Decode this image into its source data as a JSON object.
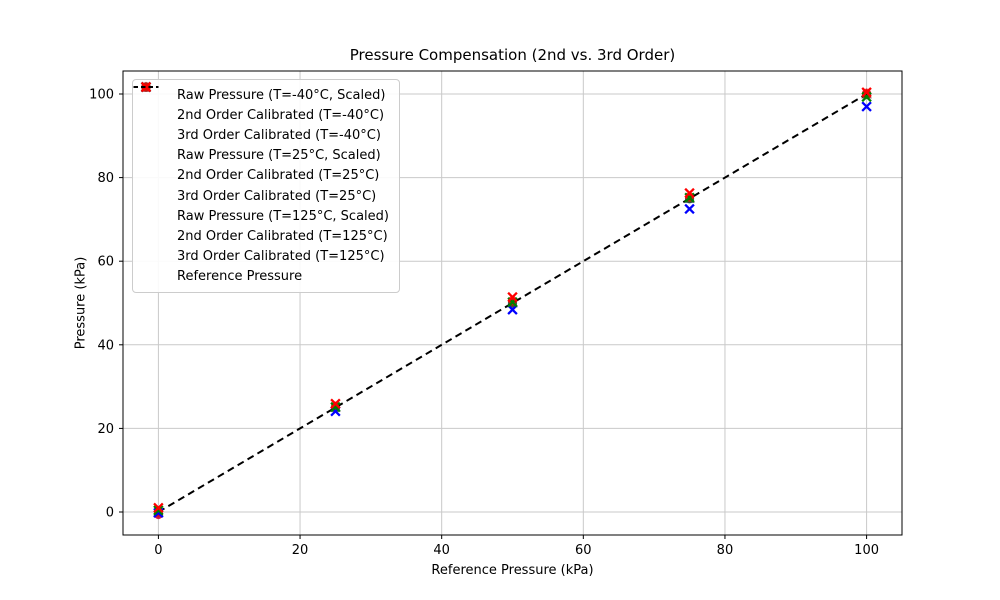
{
  "chart_data": {
    "type": "scatter",
    "title": "Pressure Compensation (2nd vs. 3rd Order)",
    "xlabel": "Reference Pressure (kPa)",
    "ylabel": "Pressure (kPa)",
    "xlim": [
      -5,
      105
    ],
    "ylim": [
      -5.5,
      105.5
    ],
    "xticks": [
      0,
      20,
      40,
      60,
      80,
      100
    ],
    "yticks": [
      0,
      20,
      40,
      60,
      80,
      100
    ],
    "grid": true,
    "grid_color": "#c9c9c9",
    "axes_color": "#000000",
    "legend_position": "upper left",
    "series": [
      {
        "name": "Raw Pressure (T=-40°C, Scaled)",
        "marker": "x",
        "color": "#0000ff",
        "opacity": 1,
        "x": [
          0,
          25,
          50,
          75,
          100
        ],
        "y": [
          -0.2,
          24.1,
          48.4,
          72.5,
          97.0
        ]
      },
      {
        "name": "2nd Order Calibrated (T=-40°C)",
        "marker": "circle",
        "color": "#0000ff",
        "opacity": 0.68,
        "x": [
          0,
          25,
          50,
          75,
          100
        ],
        "y": [
          -0.5,
          24.9,
          49.9,
          74.9,
          100.0
        ]
      },
      {
        "name": "3rd Order Calibrated (T=-40°C)",
        "marker": "triangle",
        "color": "#0000ff",
        "opacity": 0.34,
        "x": [
          0,
          25,
          50,
          75,
          100
        ],
        "y": [
          0.0,
          25.0,
          50.0,
          75.0,
          100.0
        ]
      },
      {
        "name": "Raw Pressure (T=25°C, Scaled)",
        "marker": "x",
        "color": "#008000",
        "opacity": 1,
        "x": [
          0,
          25,
          50,
          75,
          100
        ],
        "y": [
          0.4,
          25.1,
          50.2,
          75.2,
          99.3
        ]
      },
      {
        "name": "2nd Order Calibrated (T=25°C)",
        "marker": "circle",
        "color": "#008000",
        "opacity": 0.68,
        "x": [
          0,
          25,
          50,
          75,
          100
        ],
        "y": [
          0.1,
          25.0,
          50.0,
          75.0,
          99.9
        ]
      },
      {
        "name": "3rd Order Calibrated (T=25°C)",
        "marker": "triangle",
        "color": "#008000",
        "opacity": 0.34,
        "x": [
          0,
          25,
          50,
          75,
          100
        ],
        "y": [
          0.0,
          25.0,
          50.0,
          75.0,
          100.0
        ]
      },
      {
        "name": "Raw Pressure (T=125°C, Scaled)",
        "marker": "x",
        "color": "#ff0000",
        "opacity": 1,
        "x": [
          0,
          25,
          50,
          75,
          100
        ],
        "y": [
          1.0,
          25.9,
          51.4,
          76.3,
          100.4
        ]
      },
      {
        "name": "2nd Order Calibrated (T=125°C)",
        "marker": "circle",
        "color": "#ff0000",
        "opacity": 0.68,
        "x": [
          0,
          25,
          50,
          75,
          100
        ],
        "y": [
          -0.6,
          25.3,
          50.6,
          75.4,
          100.2
        ]
      },
      {
        "name": "3rd Order Calibrated (T=125°C)",
        "marker": "triangle",
        "color": "#ff0000",
        "opacity": 0.34,
        "x": [
          0,
          25,
          50,
          75,
          100
        ],
        "y": [
          -0.2,
          25.1,
          50.1,
          75.1,
          100.0
        ]
      },
      {
        "name": "Reference Pressure",
        "marker": "dashed-line",
        "color": "#000000",
        "opacity": 1,
        "x": [
          0,
          100
        ],
        "y": [
          0,
          100
        ]
      }
    ]
  }
}
